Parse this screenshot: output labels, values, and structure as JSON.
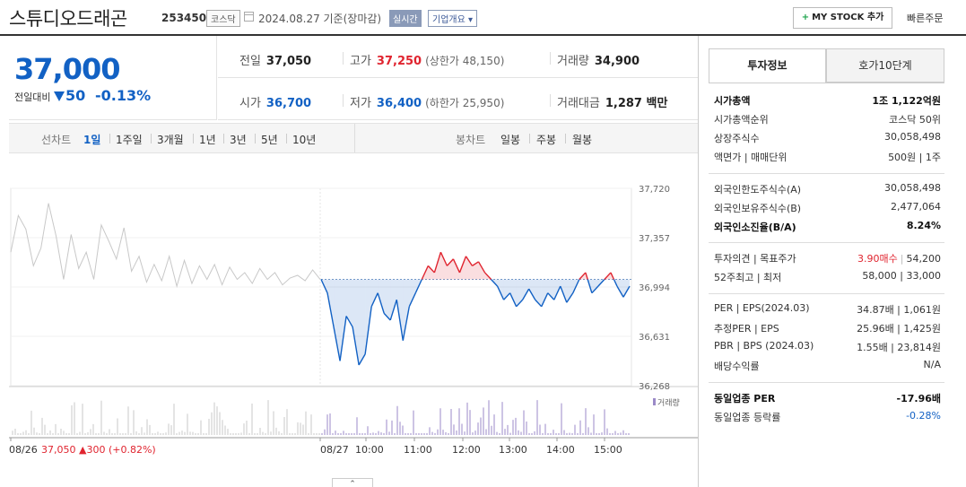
{
  "header": {
    "name": "스튜디오드래곤",
    "code": "253450",
    "market": "코스닥",
    "date": "2024.08.27 기준(장마감)",
    "realtime": "실시간",
    "corp_info": "기업개요 ▾",
    "mystock": "MY STOCK 추가",
    "quick_order": "빠른주문"
  },
  "price": {
    "now": "37,000",
    "compare_label": "전일대비",
    "diff": "50",
    "pct": "-0.13%",
    "direction": "down"
  },
  "stats": {
    "prev": {
      "label": "전일",
      "value": "37,050"
    },
    "high": {
      "label": "고가",
      "value": "37,250",
      "sub": "(상한가 48,150)"
    },
    "volume": {
      "label": "거래량",
      "value": "34,900"
    },
    "open": {
      "label": "시가",
      "value": "36,700"
    },
    "low": {
      "label": "저가",
      "value": "36,400",
      "sub": "(하한가 25,950)"
    },
    "amount": {
      "label": "거래대금",
      "value": "1,287 백만"
    }
  },
  "tabbar": {
    "line_label": "선차트",
    "periods": [
      "1일",
      "1주일",
      "3개월",
      "1년",
      "3년",
      "5년",
      "10년"
    ],
    "active_period": "1일",
    "candle_label": "봉차트",
    "candles": [
      "일봉",
      "주봉",
      "월봉"
    ]
  },
  "chart_data": {
    "type": "line",
    "y_ticks": [
      "37,720",
      "37,357",
      "36,994",
      "36,631",
      "36,268"
    ],
    "ylim": [
      36268,
      37720
    ],
    "baseline": 37050,
    "x_ticks": [
      "08/26",
      "08/27",
      "10:00",
      "11:00",
      "12:00",
      "13:00",
      "14:00",
      "15:00"
    ],
    "volume_legend": "거래량",
    "prev_day_summary": {
      "date": "08/26",
      "close": "37,050",
      "change": "▲300 (+0.82%)"
    },
    "prev_day_series": [
      37250,
      37520,
      37420,
      37150,
      37280,
      37610,
      37370,
      37050,
      37380,
      37130,
      37250,
      37050,
      37450,
      37330,
      37200,
      37430,
      37110,
      37220,
      37030,
      37160,
      37040,
      37220,
      37000,
      37190,
      37020,
      37150,
      37050,
      37160,
      37010,
      37140,
      37050,
      37100,
      37020,
      37130,
      37050,
      37100,
      37010,
      37060,
      37080,
      37040,
      37120,
      37050
    ],
    "today_series": [
      37050,
      36950,
      36700,
      36450,
      36780,
      36700,
      36420,
      36500,
      36850,
      36950,
      36800,
      36750,
      36900,
      36600,
      36850,
      36950,
      37050,
      37150,
      37100,
      37250,
      37150,
      37200,
      37100,
      37220,
      37150,
      37180,
      37100,
      37050,
      37000,
      36900,
      36950,
      36850,
      36900,
      36980,
      36900,
      36850,
      36950,
      36900,
      37000,
      36880,
      36950,
      37050,
      37100,
      36950,
      37000,
      37050,
      37100,
      37000,
      36920,
      37000
    ]
  },
  "right": {
    "tab_active": "투자정보",
    "tab_other": "호가10단계",
    "rows1": [
      {
        "k": "시가총액",
        "v": "1조 1,122억원",
        "bold": true
      },
      {
        "k": "시가총액순위",
        "v": "코스닥 50위"
      },
      {
        "k": "상장주식수",
        "v": "30,058,498"
      },
      {
        "k": "액면가 | 매매단위",
        "v": "500원 | 1주"
      }
    ],
    "rows2": [
      {
        "k": "외국인한도주식수(A)",
        "v": "30,058,498"
      },
      {
        "k": "외국인보유주식수(B)",
        "v": "2,477,064"
      },
      {
        "k": "외국인소진율(B/A)",
        "v": "8.24%",
        "bold": true
      }
    ],
    "rows3": [
      {
        "k": "투자의견 | 목표주가",
        "v_red": "3.90매수",
        "v": "54,200"
      },
      {
        "k": "52주최고 | 최저",
        "v": "58,000 | 33,000"
      }
    ],
    "rows4": [
      {
        "k": "PER | EPS(2024.03)",
        "v": "34.87배 | 1,061원"
      },
      {
        "k": "추정PER | EPS",
        "v": "25.96배 | 1,425원"
      },
      {
        "k": "PBR | BPS (2024.03)",
        "v": "1.55배 | 23,814원"
      },
      {
        "k": "배당수익률",
        "v": "N/A"
      }
    ],
    "rows5": [
      {
        "k": "동일업종 PER",
        "v": "-17.96배",
        "bold": true
      },
      {
        "k": "동일업종 등락률",
        "v": "-0.28%"
      }
    ]
  },
  "colors": {
    "up": "#e0242f",
    "down": "#1261c4",
    "prev_line": "#c8c8c8"
  }
}
